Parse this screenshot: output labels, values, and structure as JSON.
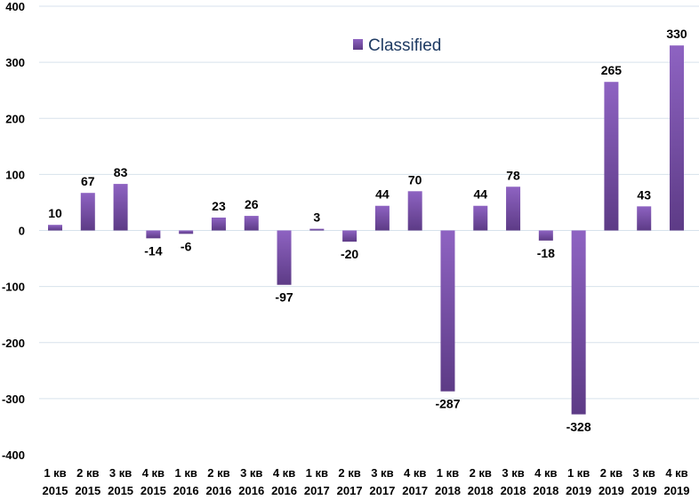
{
  "chart_data": {
    "type": "bar",
    "categories": [
      [
        "1 кв",
        "2015"
      ],
      [
        "2 кв",
        "2015"
      ],
      [
        "3 кв",
        "2015"
      ],
      [
        "4 кв",
        "2015"
      ],
      [
        "1 кв",
        "2016"
      ],
      [
        "2 кв",
        "2016"
      ],
      [
        "3 кв",
        "2016"
      ],
      [
        "4 кв",
        "2016"
      ],
      [
        "1 кв",
        "2017"
      ],
      [
        "2 кв",
        "2017"
      ],
      [
        "3 кв",
        "2017"
      ],
      [
        "4 кв",
        "2017"
      ],
      [
        "1 кв",
        "2018"
      ],
      [
        "2 кв",
        "2018"
      ],
      [
        "3 кв",
        "2018"
      ],
      [
        "4 кв",
        "2018"
      ],
      [
        "1 кв",
        "2019"
      ],
      [
        "2 кв",
        "2019"
      ],
      [
        "3 кв",
        "2019"
      ],
      [
        "4 кв",
        "2019"
      ]
    ],
    "series": [
      {
        "name": "Classified",
        "values": [
          10,
          67,
          83,
          -14,
          -6,
          23,
          26,
          -97,
          3,
          -20,
          44,
          70,
          -287,
          44,
          78,
          -18,
          -328,
          265,
          43,
          330
        ],
        "labels": [
          "10",
          "67",
          "83",
          "-14",
          "-6",
          "23",
          "26",
          "-97",
          "3",
          "-20",
          "44",
          "70",
          "-287",
          "44",
          "78",
          "-18",
          "-328",
          "265",
          "43",
          "330"
        ]
      }
    ],
    "yticks": [
      400,
      300,
      200,
      100,
      0,
      -100,
      -200,
      -300,
      -400
    ],
    "ytick_labels": [
      "400",
      "300",
      "200",
      "100",
      "0",
      "-100",
      "-200",
      "-300",
      "-400"
    ],
    "ylim": [
      -400,
      400
    ],
    "grid": true,
    "legend": "top-center",
    "colors": {
      "bar_light": "#8e63c2",
      "bar_dark": "#5d3b86",
      "grid": "#d7e2ec",
      "legend_text": "#1f3b63"
    }
  }
}
